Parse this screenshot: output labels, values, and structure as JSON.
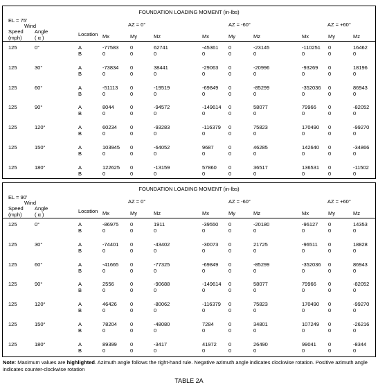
{
  "tables": [
    {
      "title": "FOUNDATION LOADING MOMENT (in-lbs)",
      "elevation": "EL = 75'",
      "wind": "Wind",
      "speed": "Speed",
      "speed_unit": "(mph)",
      "angle": "Angle",
      "angle_unit": "( α )",
      "location": "Location",
      "azimuths": [
        "AZ = 0°",
        "AZ = -60°",
        "AZ = +60°"
      ],
      "moments": [
        "Mx",
        "My",
        "Mz",
        "Mx",
        "My",
        "Mz",
        "Mx",
        "My",
        "Mz"
      ],
      "groups": [
        {
          "speed": "125",
          "angle": "0°",
          "rows": [
            [
              "A",
              "-77583",
              "0",
              "62741",
              "-45361",
              "0",
              "-23145",
              "-110251",
              "0",
              "16462"
            ],
            [
              "B",
              "0",
              "0",
              "0",
              "0",
              "0",
              "0",
              "0",
              "0",
              "0"
            ]
          ]
        },
        {
          "speed": "125",
          "angle": "30°",
          "rows": [
            [
              "A",
              "-73834",
              "0",
              "38441",
              "-29063",
              "0",
              "-20996",
              "-93269",
              "0",
              "18196"
            ],
            [
              "B",
              "0",
              "0",
              "0",
              "0",
              "0",
              "0",
              "0",
              "0",
              "0"
            ]
          ]
        },
        {
          "speed": "125",
          "angle": "60°",
          "rows": [
            [
              "A",
              "-51113",
              "0",
              "-19519",
              "-69849",
              "0",
              "-85299",
              "-352036",
              "0",
              "86943"
            ],
            [
              "B",
              "0",
              "0",
              "0",
              "0",
              "0",
              "0",
              "0",
              "0",
              "0"
            ]
          ]
        },
        {
          "speed": "125",
          "angle": "90°",
          "rows": [
            [
              "A",
              "8044",
              "0",
              "-94572",
              "-149614",
              "0",
              "58077",
              "79966",
              "0",
              "-82052"
            ],
            [
              "B",
              "0",
              "0",
              "0",
              "0",
              "0",
              "0",
              "0",
              "0",
              "0"
            ]
          ]
        },
        {
          "speed": "125",
          "angle": "120°",
          "rows": [
            [
              "A",
              "60234",
              "0",
              "-93283",
              "-116379",
              "0",
              "75823",
              "170490",
              "0",
              "-99270"
            ],
            [
              "B",
              "0",
              "0",
              "0",
              "0",
              "0",
              "0",
              "0",
              "0",
              "0"
            ]
          ]
        },
        {
          "speed": "125",
          "angle": "150°",
          "rows": [
            [
              "A",
              "103945",
              "0",
              "-64052",
              "9687",
              "0",
              "46285",
              "142640",
              "0",
              "-34866"
            ],
            [
              "B",
              "0",
              "0",
              "0",
              "0",
              "0",
              "0",
              "0",
              "0",
              "0"
            ]
          ]
        },
        {
          "speed": "125",
          "angle": "180°",
          "rows": [
            [
              "A",
              "122625",
              "0",
              "-13159",
              "57860",
              "0",
              "36517",
              "136531",
              "0",
              "-11502"
            ],
            [
              "B",
              "0",
              "0",
              "0",
              "0",
              "0",
              "0",
              "0",
              "0",
              "0"
            ]
          ]
        }
      ]
    },
    {
      "title": "FOUNDATION LOADING MOMENT (in-lbs)",
      "elevation": "EL = 90'",
      "wind": "Wind",
      "speed": "Speed",
      "speed_unit": "(mph)",
      "angle": "Angle",
      "angle_unit": "( α )",
      "location": "Location",
      "azimuths": [
        "AZ = 0°",
        "AZ = -60°",
        "AZ = +60°"
      ],
      "moments": [
        "Mx",
        "My",
        "Mz",
        "Mx",
        "My",
        "Mz",
        "Mx",
        "My",
        "Mz"
      ],
      "groups": [
        {
          "speed": "125",
          "angle": "0°",
          "rows": [
            [
              "A",
              "-86975",
              "0",
              "1911",
              "-39550",
              "0",
              "-20180",
              "-96127",
              "0",
              "14353"
            ],
            [
              "B",
              "0",
              "0",
              "0",
              "0",
              "0",
              "0",
              "0",
              "0",
              "0"
            ]
          ]
        },
        {
          "speed": "125",
          "angle": "30°",
          "rows": [
            [
              "A",
              "-74401",
              "0",
              "-43402",
              "-30073",
              "0",
              "21725",
              "-96511",
              "0",
              "18828"
            ],
            [
              "B",
              "0",
              "0",
              "0",
              "0",
              "0",
              "0",
              "0",
              "0",
              "0"
            ]
          ]
        },
        {
          "speed": "125",
          "angle": "60°",
          "rows": [
            [
              "A",
              "-41665",
              "0",
              "-77325",
              "-69849",
              "0",
              "-85299",
              "-352036",
              "0",
              "86943"
            ],
            [
              "B",
              "0",
              "0",
              "0",
              "0",
              "0",
              "0",
              "0",
              "0",
              "0"
            ]
          ]
        },
        {
          "speed": "125",
          "angle": "90°",
          "rows": [
            [
              "A",
              "2556",
              "0",
              "-90688",
              "-149614",
              "0",
              "58077",
              "79966",
              "0",
              "-82052"
            ],
            [
              "B",
              "0",
              "0",
              "0",
              "0",
              "0",
              "0",
              "0",
              "0",
              "0"
            ]
          ]
        },
        {
          "speed": "125",
          "angle": "120°",
          "rows": [
            [
              "A",
              "46426",
              "0",
              "-80062",
              "-116379",
              "0",
              "75823",
              "170490",
              "0",
              "-99270"
            ],
            [
              "B",
              "0",
              "0",
              "0",
              "0",
              "0",
              "0",
              "0",
              "0",
              "0"
            ]
          ]
        },
        {
          "speed": "125",
          "angle": "150°",
          "rows": [
            [
              "A",
              "78204",
              "0",
              "-48080",
              "7284",
              "0",
              "34801",
              "107249",
              "0",
              "-26216"
            ],
            [
              "B",
              "0",
              "0",
              "0",
              "0",
              "0",
              "0",
              "0",
              "0",
              "0"
            ]
          ]
        },
        {
          "speed": "125",
          "angle": "180°",
          "rows": [
            [
              "A",
              "89399",
              "0",
              "-3417",
              "41972",
              "0",
              "26490",
              "99041",
              "0",
              "-8344"
            ],
            [
              "B",
              "0",
              "0",
              "0",
              "0",
              "0",
              "0",
              "0",
              "0",
              "0"
            ]
          ]
        }
      ]
    }
  ],
  "note": {
    "label": "Note:",
    "text1": "Maximum values are",
    "emphasis": "highlighted",
    "text2": ". Azimuth angle follows the right-hand rule. Negative azimuth angle indicates clockwise rotation. Positive azimuth angle indicates counter-clockwise rotation"
  },
  "caption": "TABLE 2A"
}
